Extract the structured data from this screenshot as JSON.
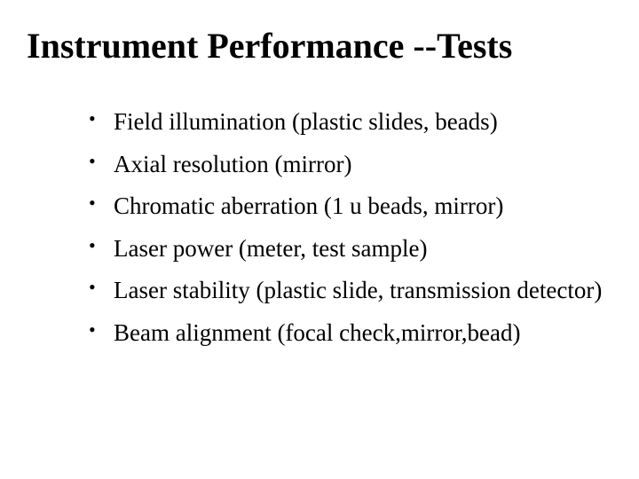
{
  "slide": {
    "title": "Instrument Performance --Tests",
    "title_fontsize": 40,
    "title_weight": "bold",
    "title_color": "#000000",
    "body_fontsize": 27,
    "body_color": "#000000",
    "background_color": "#ffffff",
    "font_family": "Times New Roman",
    "bullets": [
      "Field illumination  (plastic slides, beads)",
      "Axial resolution (mirror)",
      "Chromatic aberration (1 u beads, mirror)",
      "Laser power (meter, test sample)",
      "Laser stability (plastic slide, transmission detector)",
      "Beam alignment (focal check,mirror,bead)"
    ]
  }
}
